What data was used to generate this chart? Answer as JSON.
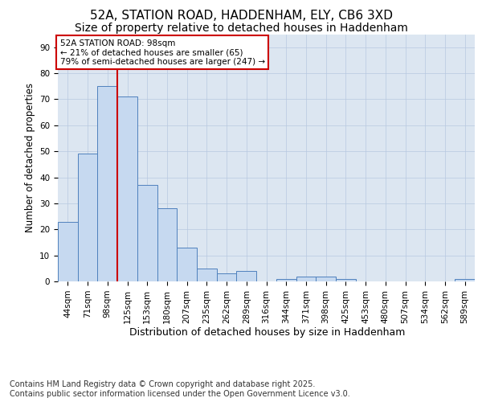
{
  "title_line1": "52A, STATION ROAD, HADDENHAM, ELY, CB6 3XD",
  "title_line2": "Size of property relative to detached houses in Haddenham",
  "xlabel": "Distribution of detached houses by size in Haddenham",
  "ylabel": "Number of detached properties",
  "categories": [
    "44sqm",
    "71sqm",
    "98sqm",
    "125sqm",
    "153sqm",
    "180sqm",
    "207sqm",
    "235sqm",
    "262sqm",
    "289sqm",
    "316sqm",
    "344sqm",
    "371sqm",
    "398sqm",
    "425sqm",
    "453sqm",
    "480sqm",
    "507sqm",
    "534sqm",
    "562sqm",
    "589sqm"
  ],
  "values": [
    23,
    49,
    75,
    71,
    37,
    28,
    13,
    5,
    3,
    4,
    0,
    1,
    2,
    2,
    1,
    0,
    0,
    0,
    0,
    0,
    1
  ],
  "bar_color": "#c6d9f0",
  "bar_edge_color": "#4f81bd",
  "red_line_index": 2,
  "annotation_text": "52A STATION ROAD: 98sqm\n← 21% of detached houses are smaller (65)\n79% of semi-detached houses are larger (247) →",
  "annotation_box_color": "#ffffff",
  "annotation_box_edge_color": "#cc0000",
  "ylim": [
    0,
    95
  ],
  "yticks": [
    0,
    10,
    20,
    30,
    40,
    50,
    60,
    70,
    80,
    90
  ],
  "grid_color": "#b8c8e0",
  "background_color": "#dce6f1",
  "footer": "Contains HM Land Registry data © Crown copyright and database right 2025.\nContains public sector information licensed under the Open Government Licence v3.0.",
  "title_fontsize": 11,
  "subtitle_fontsize": 10,
  "xlabel_fontsize": 9,
  "ylabel_fontsize": 8.5,
  "tick_fontsize": 7.5,
  "footer_fontsize": 7
}
